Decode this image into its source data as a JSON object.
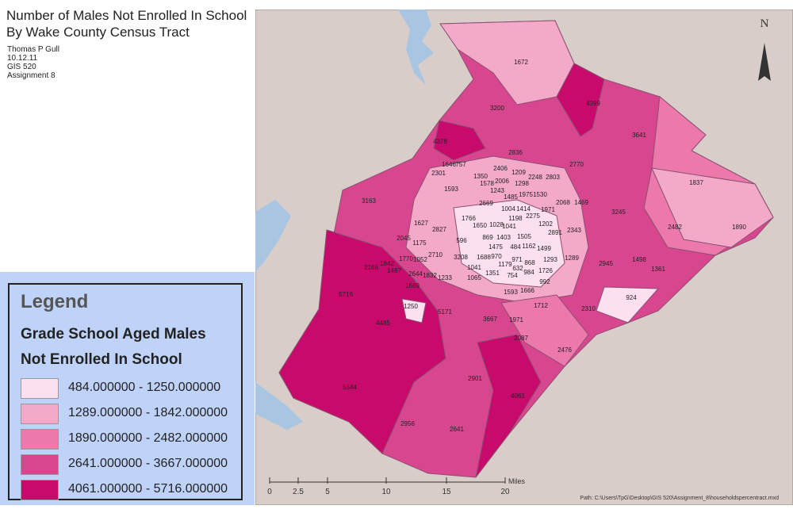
{
  "title": [
    "Number of Males Not Enrolled In School",
    "By Wake County Census Tract"
  ],
  "author": [
    "Thomas P Gull",
    "10.12.11",
    "GIS 520",
    "Assignment 8"
  ],
  "legend": {
    "heading": "Legend",
    "subtitle": [
      "Grade School Aged Males",
      "Not Enrolled In School"
    ],
    "classes": [
      {
        "label": "484.000000 - 1250.000000",
        "color": "#fde0ef"
      },
      {
        "label": "1289.000000 - 1842.000000",
        "color": "#f5a9c9"
      },
      {
        "label": "1890.000000 - 2482.000000",
        "color": "#ec78ac"
      },
      {
        "label": "2641.000000 - 3667.000000",
        "color": "#d94690"
      },
      {
        "label": "4061.000000 - 5716.000000",
        "color": "#c70a6b"
      }
    ]
  },
  "north": "N",
  "scale_bar": {
    "ticks": [
      0,
      2.5,
      5,
      10,
      15,
      20
    ],
    "unit": "Miles"
  },
  "path": "Path: C:\\Users\\TpG\\Desktop\\GIS 520\\Assignment_8\\householdspercentract.mxd",
  "tract_labels": [
    1672,
    4399,
    3200,
    3641,
    4378,
    2836,
    2770,
    1646,
    757,
    2406,
    1209,
    2301,
    1350,
    2248,
    2803,
    1578,
    2006,
    1298,
    1837,
    1243,
    1593,
    1485,
    1975,
    1530,
    3163,
    2669,
    2068,
    1469,
    1004,
    1414,
    1971,
    3245,
    1766,
    1198,
    2275,
    1627,
    1650,
    1028,
    1041,
    1202,
    2482,
    2827,
    2891,
    2343,
    1890,
    2045,
    869,
    1403,
    1505,
    596,
    1175,
    1475,
    484,
    1162,
    1499,
    2710,
    1770,
    1052,
    3208,
    1688,
    970,
    971,
    1293,
    1289,
    1498,
    1842,
    2166,
    1179,
    868,
    2945,
    1487,
    2644,
    1832,
    1233,
    1041,
    632,
    1726,
    1361,
    1351,
    984,
    754,
    1065,
    992,
    1669,
    5716,
    1593,
    1666,
    924,
    1250,
    5171,
    1712,
    2310,
    3667,
    1971,
    4485,
    2087,
    2476,
    2901,
    4061,
    5544,
    2956,
    2641
  ]
}
